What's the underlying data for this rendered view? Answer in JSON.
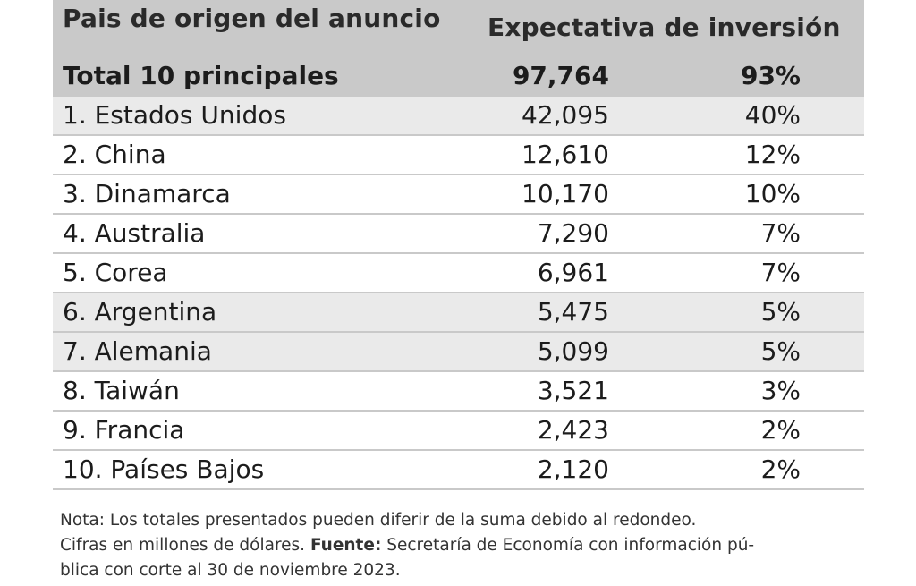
{
  "header": {
    "country": "Pais de origen del anuncio",
    "value": "Expectativa de inversión"
  },
  "total": {
    "label": "Total 10 principales",
    "amount": "97,764",
    "pct": "93%"
  },
  "rows": [
    {
      "country": "1. Estados Unidos",
      "amount": "42,095",
      "pct": "40%"
    },
    {
      "country": "2. China",
      "amount": "12,610",
      "pct": "12%"
    },
    {
      "country": "3. Dinamarca",
      "amount": "10,170",
      "pct": "10%"
    },
    {
      "country": "4. Australia",
      "amount": "7,290",
      "pct": "7%"
    },
    {
      "country": "5. Corea",
      "amount": "6,961",
      "pct": "7%"
    },
    {
      "country": "6. Argentina",
      "amount": "5,475",
      "pct": "5%"
    },
    {
      "country": "7. Alemania",
      "amount": "5,099",
      "pct": "5%"
    },
    {
      "country": "8. Taiwán",
      "amount": "3,521",
      "pct": "3%"
    },
    {
      "country": "9. Francia",
      "amount": "2,423",
      "pct": "2%"
    },
    {
      "country": "10. Países Bajos",
      "amount": "2,120",
      "pct": "2%"
    }
  ],
  "notes": {
    "line1": "Nota: Los totales presentados pueden diferir de la suma debido al redondeo.",
    "line2a": "Cifras en millones de dólares.",
    "line2_bold": "Fuente:",
    "line2b": "Secretaría de Economía con información pú-",
    "line3": "blica con corte al 30 de noviembre 2023."
  }
}
